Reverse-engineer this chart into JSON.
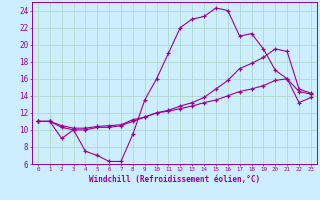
{
  "background_color": "#cceeff",
  "grid_color": "#b0d8cc",
  "line_color": "#990099",
  "marker": "+",
  "xlabel": "Windchill (Refroidissement éolien,°C)",
  "xlim": [
    -0.5,
    23.5
  ],
  "ylim": [
    6,
    25
  ],
  "yticks": [
    6,
    8,
    10,
    12,
    14,
    16,
    18,
    20,
    22,
    24
  ],
  "xticks": [
    0,
    1,
    2,
    3,
    4,
    5,
    6,
    7,
    8,
    9,
    10,
    11,
    12,
    13,
    14,
    15,
    16,
    17,
    18,
    19,
    20,
    21,
    22,
    23
  ],
  "line1_x": [
    0,
    1,
    2,
    3,
    4,
    5,
    6,
    7,
    8,
    9,
    10,
    11,
    12,
    13,
    14,
    15,
    16,
    17,
    18,
    19,
    20,
    21,
    22,
    23
  ],
  "line1_y": [
    11,
    11,
    9,
    10,
    7.5,
    7,
    6.3,
    6.3,
    9.5,
    13.5,
    16,
    19,
    22,
    23,
    23.3,
    24.3,
    24,
    21,
    21.3,
    19.5,
    17,
    16,
    14.5,
    14.2
  ],
  "line2_x": [
    0,
    1,
    2,
    3,
    4,
    5,
    6,
    7,
    8,
    9,
    10,
    11,
    12,
    13,
    14,
    15,
    16,
    17,
    18,
    19,
    20,
    21,
    22,
    23
  ],
  "line2_y": [
    11,
    11,
    10.3,
    10,
    10,
    10.3,
    10.3,
    10.5,
    11,
    11.5,
    12,
    12.3,
    12.8,
    13.2,
    13.8,
    14.8,
    15.8,
    17.2,
    17.8,
    18.5,
    19.5,
    19.2,
    14.8,
    14.3
  ],
  "line3_x": [
    0,
    1,
    2,
    3,
    4,
    5,
    6,
    7,
    8,
    9,
    10,
    11,
    12,
    13,
    14,
    15,
    16,
    17,
    18,
    19,
    20,
    21,
    22,
    23
  ],
  "line3_y": [
    11,
    11,
    10.5,
    10.2,
    10.2,
    10.4,
    10.5,
    10.6,
    11.2,
    11.5,
    12,
    12.2,
    12.5,
    12.8,
    13.2,
    13.5,
    14.0,
    14.5,
    14.8,
    15.2,
    15.8,
    16.0,
    13.2,
    13.8
  ]
}
